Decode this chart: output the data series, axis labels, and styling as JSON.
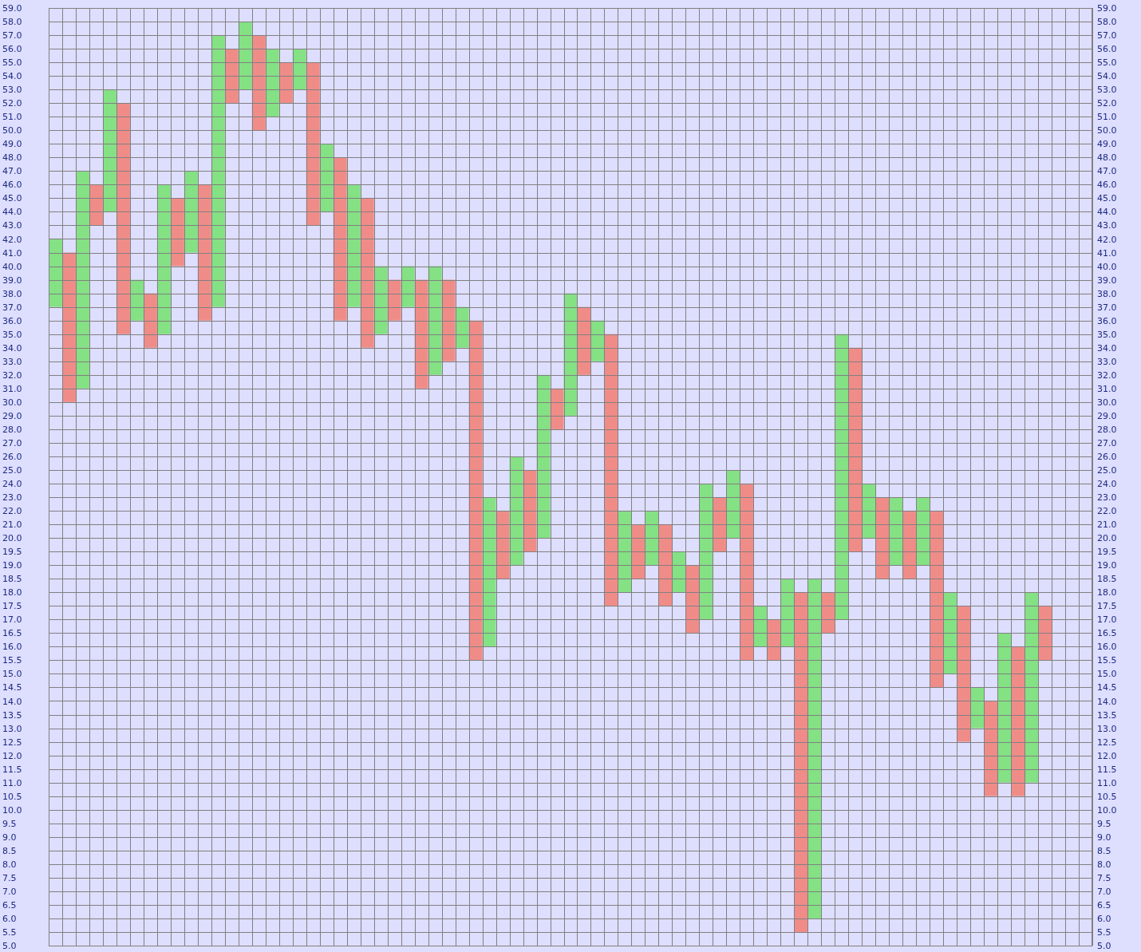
{
  "chart_data": [
    {
      "type": "bar",
      "categories": [
        null,
        null,
        null,
        null,
        null,
        null,
        null,
        null,
        null,
        null,
        null,
        null,
        null,
        null,
        null,
        null,
        null,
        null,
        null,
        null,
        null,
        null,
        null,
        null,
        null,
        null,
        null,
        null,
        null,
        null,
        null,
        null,
        null,
        null,
        null,
        null,
        null,
        null,
        null,
        null,
        null,
        null,
        null,
        null,
        null,
        null,
        null,
        null,
        null,
        null,
        null,
        null,
        null,
        null,
        null,
        null,
        null,
        null,
        null,
        null,
        null,
        null,
        null,
        null,
        null,
        null,
        null,
        null,
        null,
        null,
        null,
        null,
        null,
        null,
        null,
        null,
        null
      ],
      "base": [
        37,
        30,
        31,
        43,
        44,
        35,
        36,
        34,
        35,
        40,
        41,
        36,
        37,
        52,
        53,
        50,
        51,
        52,
        53,
        43,
        44,
        36,
        37,
        34,
        35,
        36,
        37,
        31,
        32,
        33,
        34,
        20,
        20,
        20,
        20,
        20,
        20,
        28,
        29,
        32,
        33,
        20,
        20,
        20,
        20,
        20,
        null,
        null,
        20,
        20,
        20,
        20,
        null,
        null,
        null,
        null,
        null,
        null,
        20,
        20,
        20,
        20,
        20,
        20,
        20,
        20,
        null,
        null,
        null,
        null,
        null,
        null,
        null,
        null,
        null,
        null,
        null
      ],
      "values": [
        5,
        11,
        16,
        3,
        9,
        17,
        3,
        4,
        11,
        5,
        6,
        10,
        20,
        4,
        5,
        7,
        5,
        3,
        3,
        12,
        5,
        12,
        9,
        11,
        5,
        3,
        3,
        8,
        8,
        6,
        3,
        16,
        3,
        2,
        6,
        5,
        12,
        3,
        9,
        5,
        3,
        15,
        2,
        1,
        2,
        1,
        null,
        null,
        4,
        3,
        5,
        4,
        null,
        null,
        null,
        null,
        null,
        null,
        15,
        14,
        4,
        3,
        3,
        2,
        3,
        2,
        null,
        null,
        null,
        null,
        null,
        null,
        null,
        null,
        null,
        null,
        null
      ],
      "colors": [
        "#84e184",
        "#f08c88",
        "#84e184",
        "#f08c88",
        "#84e184",
        "#f08c88",
        "#84e184",
        "#f08c88",
        "#84e184",
        "#f08c88",
        "#84e184",
        "#f08c88",
        "#84e184",
        "#f08c88",
        "#84e184",
        "#f08c88",
        "#84e184",
        "#f08c88",
        "#84e184",
        "#f08c88",
        "#84e184",
        "#f08c88",
        "#84e184",
        "#f08c88",
        "#84e184",
        "#f08c88",
        "#84e184",
        "#f08c88",
        "#84e184",
        "#f08c88",
        "#84e184",
        "#f08c88",
        "#84e184",
        "#f08c88",
        "#84e184",
        "#f08c88",
        "#84e184",
        "#f08c88",
        "#84e184",
        "#f08c88",
        "#84e184",
        "#f08c88",
        "#84e184",
        "#f08c88",
        "#84e184",
        "#f08c88",
        null,
        null,
        "#84e184",
        "#f08c88",
        "#84e184",
        "#f08c88",
        null,
        null,
        null,
        null,
        null,
        null,
        "#84e184",
        "#f08c88",
        "#84e184",
        "#f08c88",
        "#84e184",
        "#f08c88",
        "#84e184",
        "#f08c88",
        null,
        null,
        null,
        null,
        null,
        null,
        null,
        null,
        null,
        null,
        null
      ],
      "ylim": [
        20,
        59
      ],
      "yticks": [
        {
          "value": 20,
          "label": "20.0"
        },
        {
          "value": 21,
          "label": "21.0"
        },
        {
          "value": 22,
          "label": "22.0"
        },
        {
          "value": 23,
          "label": "23.0"
        },
        {
          "value": 24,
          "label": "24.0"
        },
        {
          "value": 25,
          "label": "25.0"
        },
        {
          "value": 26,
          "label": "26.0"
        },
        {
          "value": 27,
          "label": "27.0"
        },
        {
          "value": 28,
          "label": "28.0"
        },
        {
          "value": 29,
          "label": "29.0"
        },
        {
          "value": 30,
          "label": "30.0"
        },
        {
          "value": 31,
          "label": "31.0"
        },
        {
          "value": 32,
          "label": "32.0"
        },
        {
          "value": 33,
          "label": "33.0"
        },
        {
          "value": 34,
          "label": "34.0"
        },
        {
          "value": 35,
          "label": "35.0"
        },
        {
          "value": 36,
          "label": "36.0"
        },
        {
          "value": 37,
          "label": "37.0"
        },
        {
          "value": 38,
          "label": "38.0"
        },
        {
          "value": 39,
          "label": "39.0"
        },
        {
          "value": 40,
          "label": "40.0"
        },
        {
          "value": 41,
          "label": "41.0"
        },
        {
          "value": 42,
          "label": "42.0"
        },
        {
          "value": 43,
          "label": "43.0"
        },
        {
          "value": 44,
          "label": "44.0"
        },
        {
          "value": 45,
          "label": "45.0"
        },
        {
          "value": 46,
          "label": "46.0"
        },
        {
          "value": 47,
          "label": "47.0"
        },
        {
          "value": 48,
          "label": "48.0"
        },
        {
          "value": 49,
          "label": "49.0"
        },
        {
          "value": 50,
          "label": "50.0"
        },
        {
          "value": 51,
          "label": "51.0"
        },
        {
          "value": 52,
          "label": "52.0"
        },
        {
          "value": 53,
          "label": "53.0"
        },
        {
          "value": 54,
          "label": "54.0"
        },
        {
          "value": 55,
          "label": "55.0"
        },
        {
          "value": 56,
          "label": "56.0"
        },
        {
          "value": 57,
          "label": "57.0"
        },
        {
          "value": 58,
          "label": "58.0"
        },
        {
          "value": 59,
          "label": "59.0"
        }
      ],
      "y2lim": [
        20,
        59
      ],
      "y2ticks": [
        {
          "value": 20,
          "label": "20.0"
        },
        {
          "value": 21,
          "label": "21.0"
        },
        {
          "value": 22,
          "label": "22.0"
        },
        {
          "value": 23,
          "label": "23.0"
        },
        {
          "value": 24,
          "label": "24.0"
        },
        {
          "value": 25,
          "label": "25.0"
        },
        {
          "value": 26,
          "label": "26.0"
        },
        {
          "value": 27,
          "label": "27.0"
        },
        {
          "value": 28,
          "label": "28.0"
        },
        {
          "value": 29,
          "label": "29.0"
        },
        {
          "value": 30,
          "label": "30.0"
        },
        {
          "value": 31,
          "label": "31.0"
        },
        {
          "value": 32,
          "label": "32.0"
        },
        {
          "value": 33,
          "label": "33.0"
        },
        {
          "value": 34,
          "label": "34.0"
        },
        {
          "value": 35,
          "label": "35.0"
        },
        {
          "value": 36,
          "label": "36.0"
        },
        {
          "value": 37,
          "label": "37.0"
        },
        {
          "value": 38,
          "label": "38.0"
        },
        {
          "value": 39,
          "label": "39.0"
        },
        {
          "value": 40,
          "label": "40.0"
        },
        {
          "value": 41,
          "label": "41.0"
        },
        {
          "value": 42,
          "label": "42.0"
        },
        {
          "value": 43,
          "label": "43.0"
        },
        {
          "value": 44,
          "label": "44.0"
        },
        {
          "value": 45,
          "label": "45.0"
        },
        {
          "value": 46,
          "label": "46.0"
        },
        {
          "value": 47,
          "label": "47.0"
        },
        {
          "value": 48,
          "label": "48.0"
        },
        {
          "value": 49,
          "label": "49.0"
        },
        {
          "value": 50,
          "label": "50.0"
        },
        {
          "value": 51,
          "label": "51.0"
        },
        {
          "value": 52,
          "label": "52.0"
        },
        {
          "value": 53,
          "label": "53.0"
        },
        {
          "value": 54,
          "label": "54.0"
        },
        {
          "value": 55,
          "label": "55.0"
        },
        {
          "value": 56,
          "label": "56.0"
        },
        {
          "value": 57,
          "label": "57.0"
        },
        {
          "value": 58,
          "label": "58.0"
        },
        {
          "value": 59,
          "label": "59.0"
        }
      ],
      "grid": true,
      "tick_labels": "y"
    },
    {
      "type": "bar",
      "categories": [
        null,
        null,
        null,
        null,
        null,
        null,
        null,
        null,
        null,
        null,
        null,
        null,
        null,
        null,
        null,
        null,
        null,
        null,
        null,
        null,
        null,
        null,
        null,
        null,
        null,
        null,
        null,
        null,
        null,
        null,
        null,
        null,
        null,
        null,
        null,
        null,
        null,
        null,
        null,
        null,
        null,
        null,
        null,
        null,
        null,
        null,
        null,
        null,
        null,
        null,
        null,
        null,
        null,
        null,
        null,
        null,
        null,
        null,
        null,
        null,
        null,
        null,
        null,
        null,
        null,
        null,
        null,
        null,
        null,
        null,
        null,
        null,
        null,
        null,
        null,
        null,
        null
      ],
      "base": [
        null,
        null,
        null,
        null,
        null,
        null,
        null,
        null,
        null,
        null,
        null,
        null,
        null,
        null,
        null,
        null,
        null,
        null,
        null,
        null,
        null,
        null,
        null,
        null,
        null,
        null,
        null,
        null,
        null,
        null,
        null,
        15.5,
        16,
        18.5,
        19,
        19.5,
        null,
        null,
        null,
        null,
        null,
        17.5,
        18,
        18.5,
        19,
        17.5,
        18,
        16.5,
        17,
        19.5,
        null,
        15.5,
        16,
        15.5,
        16,
        5.5,
        6,
        16.5,
        17,
        19.5,
        null,
        18.5,
        19,
        18.5,
        19,
        14.5,
        15,
        12.5,
        13,
        10.5,
        11,
        10.5,
        11,
        15.5,
        null,
        null,
        null
      ],
      "values": [
        null,
        null,
        null,
        null,
        null,
        null,
        null,
        null,
        null,
        null,
        null,
        null,
        null,
        null,
        null,
        null,
        null,
        null,
        null,
        null,
        null,
        null,
        null,
        null,
        null,
        null,
        null,
        null,
        null,
        null,
        null,
        4.5,
        4,
        1.5,
        1,
        0.5,
        null,
        null,
        null,
        null,
        null,
        2.5,
        2,
        1.5,
        1,
        2.5,
        1.5,
        2.5,
        3,
        0.5,
        null,
        4.5,
        1.5,
        1.5,
        2.5,
        12.5,
        12.5,
        1.5,
        3,
        0.5,
        null,
        1.5,
        1,
        1.5,
        1,
        5.5,
        3,
        5,
        1.5,
        3.5,
        5.5,
        5.5,
        7,
        2,
        null,
        null,
        null
      ],
      "colors": [
        null,
        null,
        null,
        null,
        null,
        null,
        null,
        null,
        null,
        null,
        null,
        null,
        null,
        null,
        null,
        null,
        null,
        null,
        null,
        null,
        null,
        null,
        null,
        null,
        null,
        null,
        null,
        null,
        null,
        null,
        null,
        "#f08c88",
        "#84e184",
        "#f08c88",
        "#84e184",
        "#f08c88",
        null,
        null,
        null,
        null,
        null,
        "#f08c88",
        "#84e184",
        "#f08c88",
        "#84e184",
        "#f08c88",
        "#84e184",
        "#f08c88",
        "#84e184",
        "#f08c88",
        null,
        "#f08c88",
        "#84e184",
        "#f08c88",
        "#84e184",
        "#f08c88",
        "#84e184",
        "#f08c88",
        "#84e184",
        "#f08c88",
        null,
        "#f08c88",
        "#84e184",
        "#f08c88",
        "#84e184",
        "#f08c88",
        "#84e184",
        "#f08c88",
        "#84e184",
        "#f08c88",
        "#84e184",
        "#f08c88",
        "#84e184",
        "#f08c88",
        null,
        null,
        null
      ],
      "ylim": [
        5,
        20
      ],
      "yticks": [
        {
          "value": 5,
          "label": "5.0"
        },
        5.5,
        {
          "value": 6,
          "label": "6.0"
        },
        6.5,
        {
          "value": 7,
          "label": "7.0"
        },
        7.5,
        {
          "value": 8,
          "label": "8.0"
        },
        8.5,
        {
          "value": 9,
          "label": "9.0"
        },
        9.5,
        {
          "value": 10,
          "label": "10.0"
        },
        10.5,
        {
          "value": 11,
          "label": "11.0"
        },
        11.5,
        {
          "value": 12,
          "label": "12.0"
        },
        12.5,
        {
          "value": 13,
          "label": "13.0"
        },
        13.5,
        {
          "value": 14,
          "label": "14.0"
        },
        14.5,
        {
          "value": 15,
          "label": "15.0"
        },
        15.5,
        {
          "value": 16,
          "label": "16.0"
        },
        16.5,
        {
          "value": 17,
          "label": "17.0"
        },
        17.5,
        {
          "value": 18,
          "label": "18.0"
        },
        18.5,
        {
          "value": 19,
          "label": "19.0"
        },
        19.5
      ],
      "y2lim": [
        5,
        20
      ],
      "y2ticks": [
        {
          "value": 5,
          "label": "5.0"
        },
        5.5,
        {
          "value": 6,
          "label": "6.0"
        },
        6.5,
        {
          "value": 7,
          "label": "7.0"
        },
        7.5,
        {
          "value": 8,
          "label": "8.0"
        },
        8.5,
        {
          "value": 9,
          "label": "9.0"
        },
        9.5,
        {
          "value": 10,
          "label": "10.0"
        },
        10.5,
        {
          "value": 11,
          "label": "11.0"
        },
        11.5,
        {
          "value": 12,
          "label": "12.0"
        },
        12.5,
        {
          "value": 13,
          "label": "13.0"
        },
        13.5,
        {
          "value": 14,
          "label": "14.0"
        },
        14.5,
        {
          "value": 15,
          "label": "15.0"
        },
        15.5,
        {
          "value": 16,
          "label": "16.0"
        },
        16.5,
        {
          "value": 17,
          "label": "17.0"
        },
        17.5,
        {
          "value": 18,
          "label": "18.0"
        },
        18.5,
        {
          "value": 19,
          "label": "19.0"
        },
        19.5
      ],
      "grid": true,
      "tick_labels": "y"
    }
  ]
}
